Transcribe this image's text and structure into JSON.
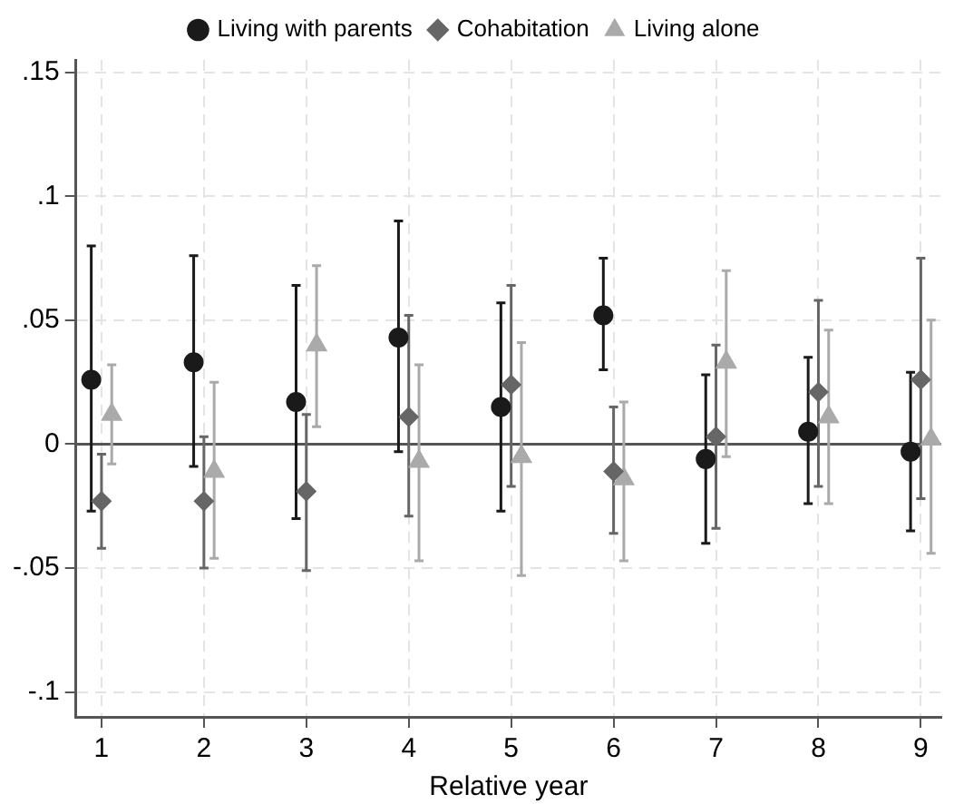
{
  "chart_data": {
    "type": "scatter",
    "xlabel": "Relative year",
    "xlim": [
      0.75,
      9.2
    ],
    "xticks": [
      1,
      2,
      3,
      4,
      5,
      6,
      7,
      8,
      9
    ],
    "ylim": [
      -0.11,
      0.155
    ],
    "yticks": [
      {
        "value": -0.1,
        "label": "-.1"
      },
      {
        "value": -0.05,
        "label": "-.05"
      },
      {
        "value": 0,
        "label": "0"
      },
      {
        "value": 0.05,
        "label": ".05"
      },
      {
        "value": 0.1,
        "label": ".1"
      },
      {
        "value": 0.15,
        "label": ".15"
      }
    ],
    "grid": true,
    "legend": "top",
    "ref_lines": [
      {
        "axis": "y",
        "value": 0,
        "color": "#555555"
      }
    ],
    "series": [
      {
        "name": "Living with parents",
        "color": "#1a1a1a",
        "marker": "circle",
        "x": [
          0.9,
          1.9,
          2.9,
          3.9,
          4.9,
          5.9,
          6.9,
          7.9,
          8.9
        ],
        "values": [
          0.026,
          0.033,
          0.017,
          0.043,
          0.015,
          0.052,
          -0.006,
          0.005,
          -0.003
        ],
        "errors": [
          [
            -0.027,
            0.08
          ],
          [
            -0.009,
            0.076
          ],
          [
            -0.03,
            0.064
          ],
          [
            -0.003,
            0.09
          ],
          [
            -0.027,
            0.057
          ],
          [
            0.03,
            0.075
          ],
          [
            -0.04,
            0.028
          ],
          [
            -0.024,
            0.035
          ],
          [
            -0.035,
            0.029
          ]
        ]
      },
      {
        "name": "Cohabitation",
        "color": "#666666",
        "marker": "diamond",
        "x": [
          1,
          2,
          3,
          4,
          5,
          6,
          7,
          8,
          9
        ],
        "values": [
          -0.023,
          -0.023,
          -0.019,
          0.011,
          0.024,
          -0.011,
          0.003,
          0.021,
          0.026
        ],
        "errors": [
          [
            -0.042,
            -0.004
          ],
          [
            -0.05,
            0.003
          ],
          [
            -0.051,
            0.012
          ],
          [
            -0.029,
            0.052
          ],
          [
            -0.017,
            0.064
          ],
          [
            -0.036,
            0.015
          ],
          [
            -0.034,
            0.04
          ],
          [
            -0.017,
            0.058
          ],
          [
            -0.022,
            0.075
          ]
        ]
      },
      {
        "name": "Living alone",
        "color": "#aaaaaa",
        "marker": "triangle",
        "x": [
          1.1,
          2.1,
          3.1,
          4.1,
          5.1,
          6.1,
          7.1,
          8.1,
          9.1
        ],
        "values": [
          0.012,
          -0.011,
          0.04,
          -0.007,
          -0.005,
          -0.014,
          0.033,
          0.011,
          0.002
        ],
        "errors": [
          [
            -0.008,
            0.032
          ],
          [
            -0.046,
            0.025
          ],
          [
            0.007,
            0.072
          ],
          [
            -0.047,
            0.032
          ],
          [
            -0.053,
            0.041
          ],
          [
            -0.047,
            0.017
          ],
          [
            -0.005,
            0.07
          ],
          [
            -0.024,
            0.046
          ],
          [
            -0.044,
            0.05
          ]
        ]
      }
    ]
  }
}
